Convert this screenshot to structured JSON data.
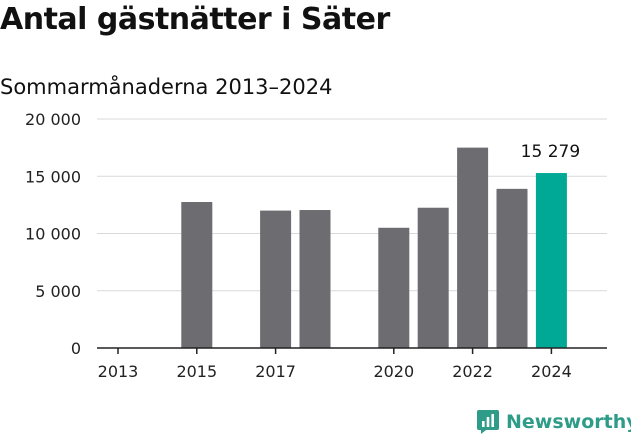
{
  "title": "Antal gästnätter i Säter",
  "subtitle": "Sommarmånaderna 2013–2024",
  "brand": {
    "name": "Newsworthy",
    "color": "#2e9c88"
  },
  "colors": {
    "bar": "#6d6c71",
    "highlight": "#00a896",
    "grid": "#d9d9d9",
    "axis": "#222222"
  },
  "chart_data": {
    "type": "bar",
    "categories": [
      "2013",
      "2014",
      "2015",
      "2016",
      "2017",
      "2018",
      "2019",
      "2020",
      "2021",
      "2022",
      "2023",
      "2024"
    ],
    "values": [
      null,
      null,
      12750,
      null,
      12000,
      12050,
      null,
      10500,
      12250,
      17500,
      13900,
      15279
    ],
    "highlight_index": 11,
    "data_labels": [
      {
        "index": 11,
        "text": "15 279"
      }
    ],
    "ylim": [
      0,
      20000
    ],
    "yticks": [
      0,
      5000,
      10000,
      15000,
      20000
    ],
    "ytick_labels": [
      "0",
      "5 000",
      "10 000",
      "15 000",
      "20 000"
    ],
    "xtick_labels": [
      {
        "category": "2013",
        "text": "2013"
      },
      {
        "category": "2015",
        "text": "2015"
      },
      {
        "category": "2017",
        "text": "2017"
      },
      {
        "category": "2020",
        "text": "2020"
      },
      {
        "category": "2022",
        "text": "2022"
      },
      {
        "category": "2024",
        "text": "2024"
      }
    ],
    "grid": true,
    "xlabel": "",
    "ylabel": ""
  }
}
